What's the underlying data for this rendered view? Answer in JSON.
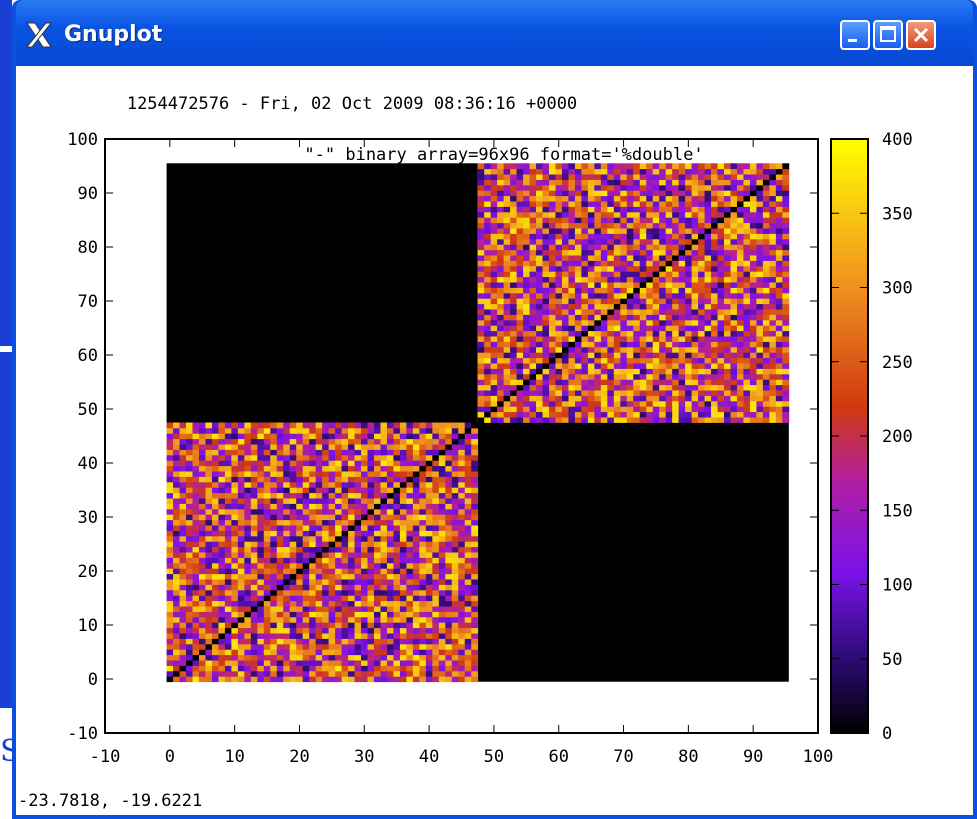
{
  "window": {
    "title": "Gnuplot",
    "icon": "x11-logo-icon",
    "buttons": [
      "minimize-icon",
      "maximize-icon",
      "close-icon"
    ],
    "status_text": "-23.7818, -19.6221"
  },
  "colors": {
    "titlebar": "#0a55e4",
    "palette": [
      "#000000",
      "#2a0b6e",
      "#7a12e8",
      "#b01ea4",
      "#d03a10",
      "#f09020",
      "#ffff00"
    ]
  },
  "chart_data": {
    "type": "heatmap",
    "title": "1254472576 - Fri, 02 Oct 2009 08:36:16  +0000",
    "series_label": "\"-\" binary array=96x96 format='%double'",
    "xlabel": "",
    "ylabel": "",
    "xlim": [
      -10,
      100
    ],
    "ylim": [
      -10,
      100
    ],
    "xticks": [
      -10,
      0,
      10,
      20,
      30,
      40,
      50,
      60,
      70,
      80,
      90,
      100
    ],
    "yticks": [
      -10,
      0,
      10,
      20,
      30,
      40,
      50,
      60,
      70,
      80,
      90,
      100
    ],
    "cbrange": [
      0,
      400
    ],
    "cbticks": [
      0,
      50,
      100,
      150,
      200,
      250,
      300,
      350,
      400
    ],
    "matrix_size": [
      96,
      96
    ],
    "blocks": [
      {
        "x": [
          0,
          48
        ],
        "y": [
          0,
          48
        ],
        "content": "random values 50-400, zero diagonal"
      },
      {
        "x": [
          48,
          96
        ],
        "y": [
          48,
          96
        ],
        "content": "random values 50-400, zero diagonal"
      },
      {
        "x": [
          0,
          48
        ],
        "y": [
          48,
          96
        ],
        "value": 0
      },
      {
        "x": [
          48,
          96
        ],
        "y": [
          0,
          48
        ],
        "value": 0
      }
    ]
  }
}
